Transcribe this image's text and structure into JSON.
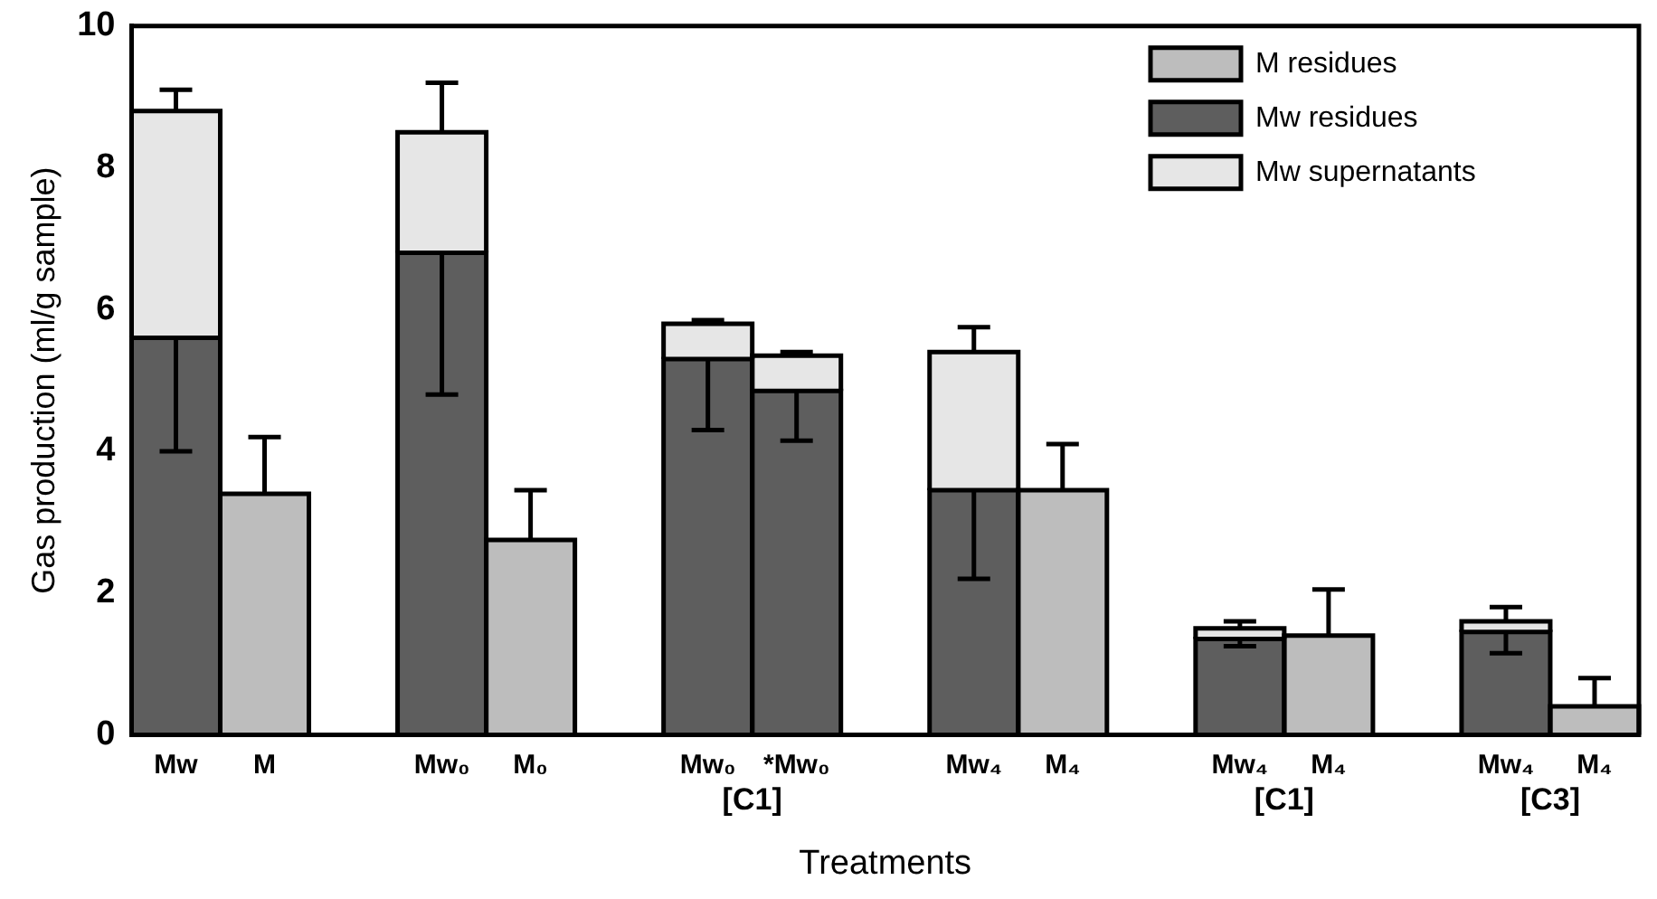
{
  "chart_data": {
    "type": "bar",
    "stacked": true,
    "xlabel": "Treatments",
    "ylabel": "Gas production (ml/g sample)",
    "categories": [
      "Mw",
      "M",
      null,
      "Mw₀",
      "M₀",
      null,
      "Mw₀",
      "*Mw₀",
      null,
      "Mw₄",
      "M₄",
      null,
      "Mw₄",
      "M₄",
      null,
      "Mw₄",
      "M₄"
    ],
    "series": [
      {
        "name": "M residues",
        "color": "#bdbdbd",
        "values": [
          null,
          3.4,
          null,
          null,
          2.75,
          null,
          null,
          null,
          null,
          null,
          3.45,
          null,
          null,
          1.4,
          null,
          null,
          0.4
        ],
        "errors": [
          null,
          [
            3.4,
            4.2
          ],
          null,
          null,
          [
            2.75,
            3.45
          ],
          null,
          null,
          null,
          null,
          null,
          [
            3.45,
            4.1
          ],
          null,
          null,
          [
            1.4,
            2.05
          ],
          null,
          null,
          [
            0.4,
            0.8
          ]
        ]
      },
      {
        "name": "Mw residues",
        "color": "#5e5e5e",
        "values": [
          5.6,
          null,
          null,
          6.8,
          null,
          null,
          5.3,
          4.85,
          null,
          3.45,
          null,
          null,
          1.35,
          null,
          null,
          1.45,
          null
        ],
        "errors": [
          [
            4.0,
            5.6
          ],
          null,
          null,
          [
            4.8,
            6.8
          ],
          null,
          null,
          [
            4.3,
            5.3
          ],
          [
            4.15,
            4.85
          ],
          null,
          [
            2.2,
            3.45
          ],
          null,
          null,
          [
            1.25,
            1.35
          ],
          null,
          null,
          [
            1.15,
            1.45
          ],
          null
        ]
      },
      {
        "name": "Mw supernatants",
        "color": "#e6e6e6",
        "values": [
          3.2,
          null,
          null,
          1.7,
          null,
          null,
          0.5,
          0.5,
          null,
          1.95,
          null,
          null,
          0.15,
          null,
          null,
          0.15,
          null
        ],
        "errors": [
          [
            8.8,
            9.1
          ],
          null,
          null,
          [
            8.5,
            9.2
          ],
          null,
          null,
          [
            5.8,
            5.85
          ],
          [
            5.35,
            5.4
          ],
          null,
          [
            5.4,
            5.75
          ],
          null,
          null,
          [
            1.5,
            1.6
          ],
          null,
          null,
          [
            1.6,
            1.8
          ],
          null
        ]
      }
    ],
    "ylim": [
      0,
      10
    ],
    "yticks": [
      0,
      2,
      4,
      6,
      8,
      10
    ],
    "grid": false,
    "legend": "top right",
    "annotations": [
      "[C1]",
      "[C1]",
      "[C3]"
    ]
  }
}
